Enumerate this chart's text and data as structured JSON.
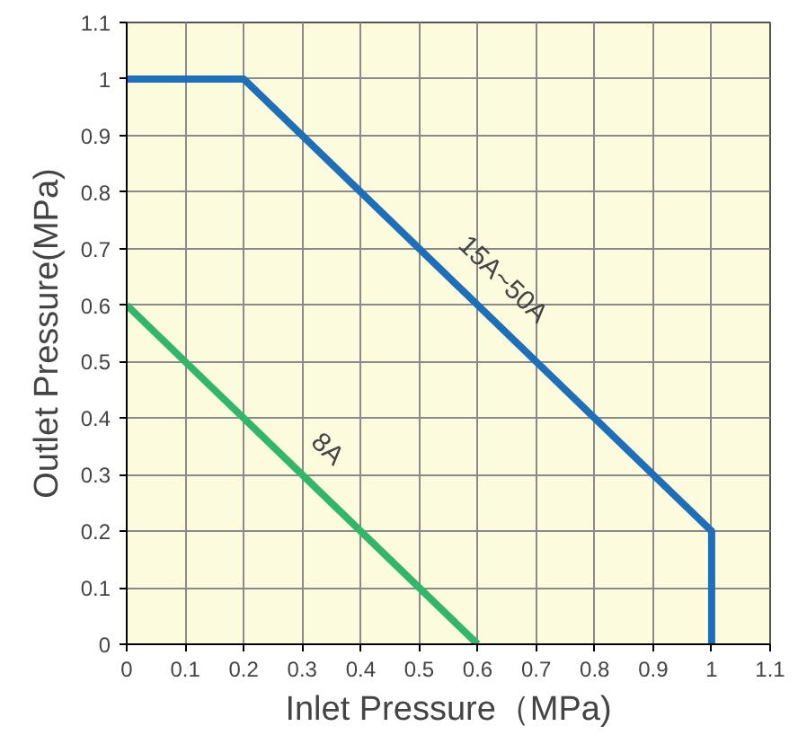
{
  "chart_data": {
    "type": "line",
    "xlabel": "Inlet Pressure（MPa)",
    "ylabel": "Outlet Pressure(MPa)",
    "series": [
      {
        "color": "#1f6fb8",
        "x": [
          0,
          0.2,
          1,
          1
        ],
        "values": [
          1,
          1,
          0.2,
          0
        ]
      },
      {
        "color": "#33b56b",
        "x": [
          0,
          0.6
        ],
        "values": [
          0.6,
          0
        ]
      }
    ],
    "annotations": [
      {
        "text": "15A~50A",
        "x": 0.6,
        "y": 0.6
      },
      {
        "text": "8A",
        "x": 0.3,
        "y": 0.3
      }
    ],
    "xlim": [
      0,
      1.1
    ],
    "ylim": [
      0,
      1.1
    ],
    "xticks": [
      0,
      0.1,
      0.2,
      0.3,
      0.4,
      0.5,
      0.6,
      0.7,
      0.8,
      0.9,
      1,
      1.1
    ],
    "yticks": [
      0,
      0.1,
      0.2,
      0.3,
      0.4,
      0.5,
      0.6,
      0.7,
      0.8,
      0.9,
      1,
      1.1
    ],
    "grid": true,
    "marker": "none",
    "line_style": "solid"
  }
}
